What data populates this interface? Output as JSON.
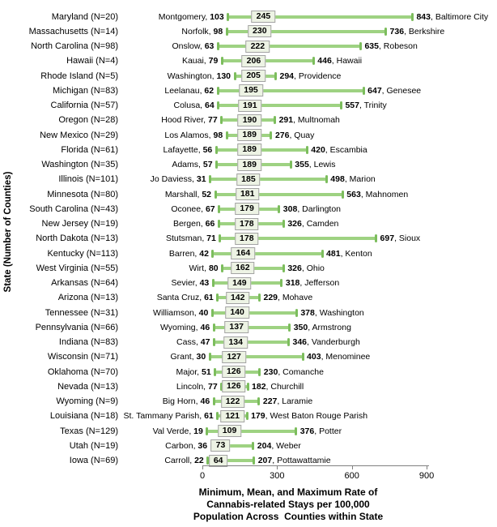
{
  "chart_data": {
    "type": "range-bar",
    "description": "Horizontal min-mean-max range bars per state; mean shown in a boxed label, min and max annotated with county names",
    "title": "Minimum, Mean, and Maximum Rate of\nCannabis-related Stays per 100,000\nPopulation Across  Counties within State",
    "ylabel": "State (Number of Counties)",
    "xlabel": "",
    "xlim": [
      0,
      900
    ],
    "x_ticks": [
      0,
      300,
      600,
      900
    ],
    "grid": false,
    "legend": "none",
    "colors": {
      "bar": "#9ED282",
      "cap": "#7CBD5D",
      "mean_box_bg": "#EDF3E4",
      "mean_box_border": "#A3A3A3",
      "axis": "#808080",
      "text": "#000000"
    },
    "rows": [
      {
        "state": "Maryland",
        "n": 20,
        "min_county": "Montgomery",
        "min": 103,
        "mean": 245,
        "max": 843,
        "max_county": "Baltimore City"
      },
      {
        "state": "Massachusetts",
        "n": 14,
        "min_county": "Norfolk",
        "min": 98,
        "mean": 230,
        "max": 736,
        "max_county": "Berkshire"
      },
      {
        "state": "North Carolina",
        "n": 98,
        "min_county": "Onslow",
        "min": 63,
        "mean": 222,
        "max": 635,
        "max_county": "Robeson"
      },
      {
        "state": "Hawaii",
        "n": 4,
        "min_county": "Kauai",
        "min": 79,
        "mean": 206,
        "max": 446,
        "max_county": "Hawaii"
      },
      {
        "state": "Rhode Island",
        "n": 5,
        "min_county": "Washington",
        "min": 130,
        "mean": 205,
        "max": 294,
        "max_county": "Providence"
      },
      {
        "state": "Michigan",
        "n": 83,
        "min_county": "Leelanau",
        "min": 62,
        "mean": 195,
        "max": 647,
        "max_county": "Genesee"
      },
      {
        "state": "California",
        "n": 57,
        "min_county": "Colusa",
        "min": 64,
        "mean": 191,
        "max": 557,
        "max_county": "Trinity"
      },
      {
        "state": "Oregon",
        "n": 28,
        "min_county": "Hood River",
        "min": 77,
        "mean": 190,
        "max": 291,
        "max_county": "Multnomah"
      },
      {
        "state": "New Mexico",
        "n": 29,
        "min_county": "Los Alamos",
        "min": 98,
        "mean": 189,
        "max": 276,
        "max_county": "Quay"
      },
      {
        "state": "Florida",
        "n": 61,
        "min_county": "Lafayette",
        "min": 56,
        "mean": 189,
        "max": 420,
        "max_county": "Escambia"
      },
      {
        "state": "Washington",
        "n": 35,
        "min_county": "Adams",
        "min": 57,
        "mean": 189,
        "max": 355,
        "max_county": "Lewis"
      },
      {
        "state": "Illinois",
        "n": 101,
        "min_county": "Jo Daviess",
        "min": 31,
        "mean": 185,
        "max": 498,
        "max_county": "Marion"
      },
      {
        "state": "Minnesota",
        "n": 80,
        "min_county": "Marshall",
        "min": 52,
        "mean": 181,
        "max": 563,
        "max_county": "Mahnomen"
      },
      {
        "state": "South Carolina",
        "n": 43,
        "min_county": "Oconee",
        "min": 67,
        "mean": 179,
        "max": 308,
        "max_county": "Darlington"
      },
      {
        "state": "New Jersey",
        "n": 19,
        "min_county": "Bergen",
        "min": 66,
        "mean": 178,
        "max": 326,
        "max_county": "Camden"
      },
      {
        "state": "North Dakota",
        "n": 13,
        "min_county": "Stutsman",
        "min": 71,
        "mean": 178,
        "max": 697,
        "max_county": "Sioux"
      },
      {
        "state": "Kentucky",
        "n": 113,
        "min_county": "Barren",
        "min": 42,
        "mean": 164,
        "max": 481,
        "max_county": "Kenton"
      },
      {
        "state": "West Virginia",
        "n": 55,
        "min_county": "Wirt",
        "min": 80,
        "mean": 162,
        "max": 326,
        "max_county": "Ohio"
      },
      {
        "state": "Arkansas",
        "n": 64,
        "min_county": "Sevier",
        "min": 43,
        "mean": 149,
        "max": 318,
        "max_county": "Jefferson"
      },
      {
        "state": "Arizona",
        "n": 13,
        "min_county": "Santa Cruz",
        "min": 61,
        "mean": 142,
        "max": 229,
        "max_county": "Mohave"
      },
      {
        "state": "Tennessee",
        "n": 31,
        "min_county": "Williamson",
        "min": 40,
        "mean": 140,
        "max": 378,
        "max_county": "Washington"
      },
      {
        "state": "Pennsylvania",
        "n": 66,
        "min_county": "Wyoming",
        "min": 46,
        "mean": 137,
        "max": 350,
        "max_county": "Armstrong"
      },
      {
        "state": "Indiana",
        "n": 83,
        "min_county": "Cass",
        "min": 47,
        "mean": 134,
        "max": 346,
        "max_county": "Vanderburgh"
      },
      {
        "state": "Wisconsin",
        "n": 71,
        "min_county": "Grant",
        "min": 30,
        "mean": 127,
        "max": 403,
        "max_county": "Menominee"
      },
      {
        "state": "Oklahoma",
        "n": 70,
        "min_county": "Major",
        "min": 51,
        "mean": 126,
        "max": 230,
        "max_county": "Comanche"
      },
      {
        "state": "Nevada",
        "n": 13,
        "min_county": "Lincoln",
        "min": 77,
        "mean": 126,
        "max": 182,
        "max_county": "Churchill"
      },
      {
        "state": "Wyoming",
        "n": 9,
        "min_county": "Big Horn",
        "min": 46,
        "mean": 122,
        "max": 227,
        "max_county": "Laramie"
      },
      {
        "state": "Louisiana",
        "n": 18,
        "min_county": "St. Tammany Parish",
        "min": 61,
        "mean": 121,
        "max": 179,
        "max_county": "West Baton Rouge Parish"
      },
      {
        "state": "Texas",
        "n": 129,
        "min_county": "Val Verde",
        "min": 19,
        "mean": 109,
        "max": 376,
        "max_county": "Potter"
      },
      {
        "state": "Utah",
        "n": 19,
        "min_county": "Carbon",
        "min": 36,
        "mean": 73,
        "max": 204,
        "max_county": "Weber"
      },
      {
        "state": "Iowa",
        "n": 69,
        "min_county": "Carroll",
        "min": 22,
        "mean": 64,
        "max": 207,
        "max_county": "Pottawattamie"
      }
    ]
  }
}
